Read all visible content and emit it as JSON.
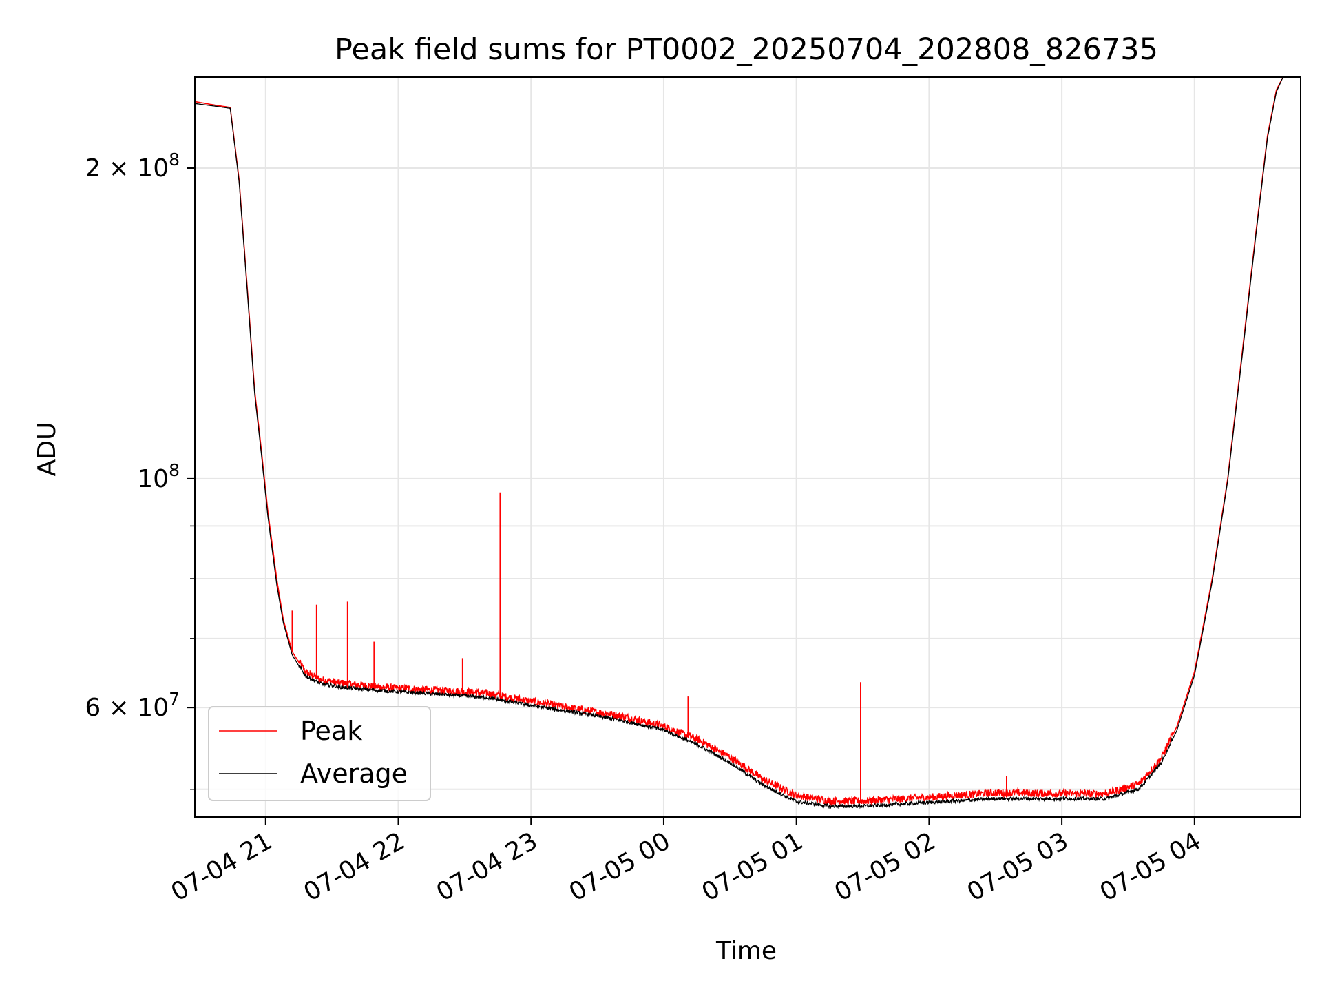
{
  "chart_data": {
    "type": "line",
    "title": "Peak field sums for PT0002_20250704_202808_826735",
    "xlabel": "Time",
    "ylabel": "ADU",
    "y_scale": "log",
    "ylim": [
      47000000,
      245000000
    ],
    "xlim": [
      "2025-07-04 20:28",
      "2025-07-05 04:48"
    ],
    "grid": true,
    "legend_position": "lower-left",
    "x_ticks": [
      {
        "value": "2025-07-04 21:00",
        "label": "07-04 21"
      },
      {
        "value": "2025-07-04 22:00",
        "label": "07-04 22"
      },
      {
        "value": "2025-07-04 23:00",
        "label": "07-04 23"
      },
      {
        "value": "2025-07-05 00:00",
        "label": "07-05 00"
      },
      {
        "value": "2025-07-05 01:00",
        "label": "07-05 01"
      },
      {
        "value": "2025-07-05 02:00",
        "label": "07-05 02"
      },
      {
        "value": "2025-07-05 03:00",
        "label": "07-05 03"
      },
      {
        "value": "2025-07-05 04:00",
        "label": "07-05 04"
      }
    ],
    "y_major_ticks": [
      {
        "value": 60000000,
        "mantissa": "6",
        "exponent": "7"
      },
      {
        "value": 100000000,
        "mantissa": "",
        "exponent": "8"
      },
      {
        "value": 200000000,
        "mantissa": "2",
        "exponent": "8"
      }
    ],
    "y_minor_ticks": [
      50000000,
      70000000,
      80000000,
      90000000,
      300000000
    ],
    "series": [
      {
        "name": "Peak",
        "color": "#ff0000",
        "points": [
          [
            "2025-07-04 20:28",
            232000000
          ],
          [
            "2025-07-04 20:38",
            230000000
          ],
          [
            "2025-07-04 20:44",
            229000000
          ],
          [
            "2025-07-04 20:48",
            195000000
          ],
          [
            "2025-07-04 20:52",
            150000000
          ],
          [
            "2025-07-04 20:55",
            122000000
          ],
          [
            "2025-07-04 20:58",
            107000000
          ],
          [
            "2025-07-04 21:01",
            93000000
          ],
          [
            "2025-07-04 21:05",
            80000000
          ],
          [
            "2025-07-04 21:08",
            73000000
          ],
          [
            "2025-07-04 21:12",
            68000000
          ],
          [
            "2025-07-04 21:18",
            64800000
          ],
          [
            "2025-07-04 21:25",
            63700000
          ],
          [
            "2025-07-04 21:35",
            63200000
          ],
          [
            "2025-07-04 21:50",
            62700000
          ],
          [
            "2025-07-04 22:00",
            62500000
          ],
          [
            "2025-07-04 22:20",
            62200000
          ],
          [
            "2025-07-04 22:40",
            61800000
          ],
          [
            "2025-07-04 23:00",
            60700000
          ],
          [
            "2025-07-04 23:20",
            59700000
          ],
          [
            "2025-07-04 23:40",
            58800000
          ],
          [
            "2025-07-05 00:00",
            57400000
          ],
          [
            "2025-07-05 00:15",
            55800000
          ],
          [
            "2025-07-05 00:30",
            53600000
          ],
          [
            "2025-07-05 00:45",
            51000000
          ],
          [
            "2025-07-05 01:00",
            49200000
          ],
          [
            "2025-07-05 01:15",
            48600000
          ],
          [
            "2025-07-05 01:30",
            48600000
          ],
          [
            "2025-07-05 02:00",
            49000000
          ],
          [
            "2025-07-05 02:30",
            49500000
          ],
          [
            "2025-07-05 03:00",
            49400000
          ],
          [
            "2025-07-05 03:20",
            49400000
          ],
          [
            "2025-07-05 03:35",
            50500000
          ],
          [
            "2025-07-05 03:45",
            53500000
          ],
          [
            "2025-07-05 03:52",
            57500000
          ],
          [
            "2025-07-05 04:00",
            65000000
          ],
          [
            "2025-07-05 04:08",
            80000000
          ],
          [
            "2025-07-05 04:15",
            100000000
          ],
          [
            "2025-07-05 04:22",
            135000000
          ],
          [
            "2025-07-05 04:28",
            175000000
          ],
          [
            "2025-07-05 04:33",
            215000000
          ],
          [
            "2025-07-05 04:37",
            238000000
          ],
          [
            "2025-07-05 04:40",
            245000000
          ],
          [
            "2025-07-05 04:48",
            245000000
          ]
        ],
        "spikes": [
          [
            "2025-07-04 21:12",
            74500000
          ],
          [
            "2025-07-04 21:23",
            75500000
          ],
          [
            "2025-07-04 21:37",
            76000000
          ],
          [
            "2025-07-04 21:49",
            69500000
          ],
          [
            "2025-07-04 22:29",
            67000000
          ],
          [
            "2025-07-04 22:46",
            97000000
          ],
          [
            "2025-07-05 00:11",
            61500000
          ],
          [
            "2025-07-05 01:29",
            63500000
          ],
          [
            "2025-07-05 02:35",
            51500000
          ]
        ]
      },
      {
        "name": "Average",
        "color": "#000000",
        "points": [
          [
            "2025-07-04 20:28",
            231000000
          ],
          [
            "2025-07-04 20:38",
            229500000
          ],
          [
            "2025-07-04 20:44",
            228500000
          ],
          [
            "2025-07-04 20:48",
            194000000
          ],
          [
            "2025-07-04 20:52",
            149000000
          ],
          [
            "2025-07-04 20:55",
            121000000
          ],
          [
            "2025-07-04 20:58",
            106000000
          ],
          [
            "2025-07-04 21:01",
            92000000
          ],
          [
            "2025-07-04 21:05",
            79000000
          ],
          [
            "2025-07-04 21:08",
            72500000
          ],
          [
            "2025-07-04 21:12",
            67500000
          ],
          [
            "2025-07-04 21:18",
            64300000
          ],
          [
            "2025-07-04 21:25",
            63200000
          ],
          [
            "2025-07-04 21:35",
            62700000
          ],
          [
            "2025-07-04 21:50",
            62300000
          ],
          [
            "2025-07-04 22:00",
            62100000
          ],
          [
            "2025-07-04 22:20",
            61700000
          ],
          [
            "2025-07-04 22:40",
            61300000
          ],
          [
            "2025-07-04 23:00",
            60200000
          ],
          [
            "2025-07-04 23:20",
            59300000
          ],
          [
            "2025-07-04 23:40",
            58300000
          ],
          [
            "2025-07-05 00:00",
            57000000
          ],
          [
            "2025-07-05 00:15",
            55200000
          ],
          [
            "2025-07-05 00:30",
            53000000
          ],
          [
            "2025-07-05 00:45",
            50400000
          ],
          [
            "2025-07-05 01:00",
            48600000
          ],
          [
            "2025-07-05 01:15",
            48100000
          ],
          [
            "2025-07-05 01:30",
            48100000
          ],
          [
            "2025-07-05 02:00",
            48500000
          ],
          [
            "2025-07-05 02:30",
            48900000
          ],
          [
            "2025-07-05 03:00",
            48900000
          ],
          [
            "2025-07-05 03:20",
            48900000
          ],
          [
            "2025-07-05 03:35",
            50000000
          ],
          [
            "2025-07-05 03:45",
            53000000
          ],
          [
            "2025-07-05 03:52",
            57000000
          ],
          [
            "2025-07-05 04:00",
            64500000
          ],
          [
            "2025-07-05 04:08",
            79500000
          ],
          [
            "2025-07-05 04:15",
            99500000
          ],
          [
            "2025-07-05 04:22",
            134000000
          ],
          [
            "2025-07-05 04:28",
            174000000
          ],
          [
            "2025-07-05 04:33",
            214000000
          ],
          [
            "2025-07-05 04:37",
            237000000
          ],
          [
            "2025-07-05 04:40",
            245000000
          ],
          [
            "2025-07-05 04:48",
            245000000
          ]
        ]
      }
    ]
  }
}
